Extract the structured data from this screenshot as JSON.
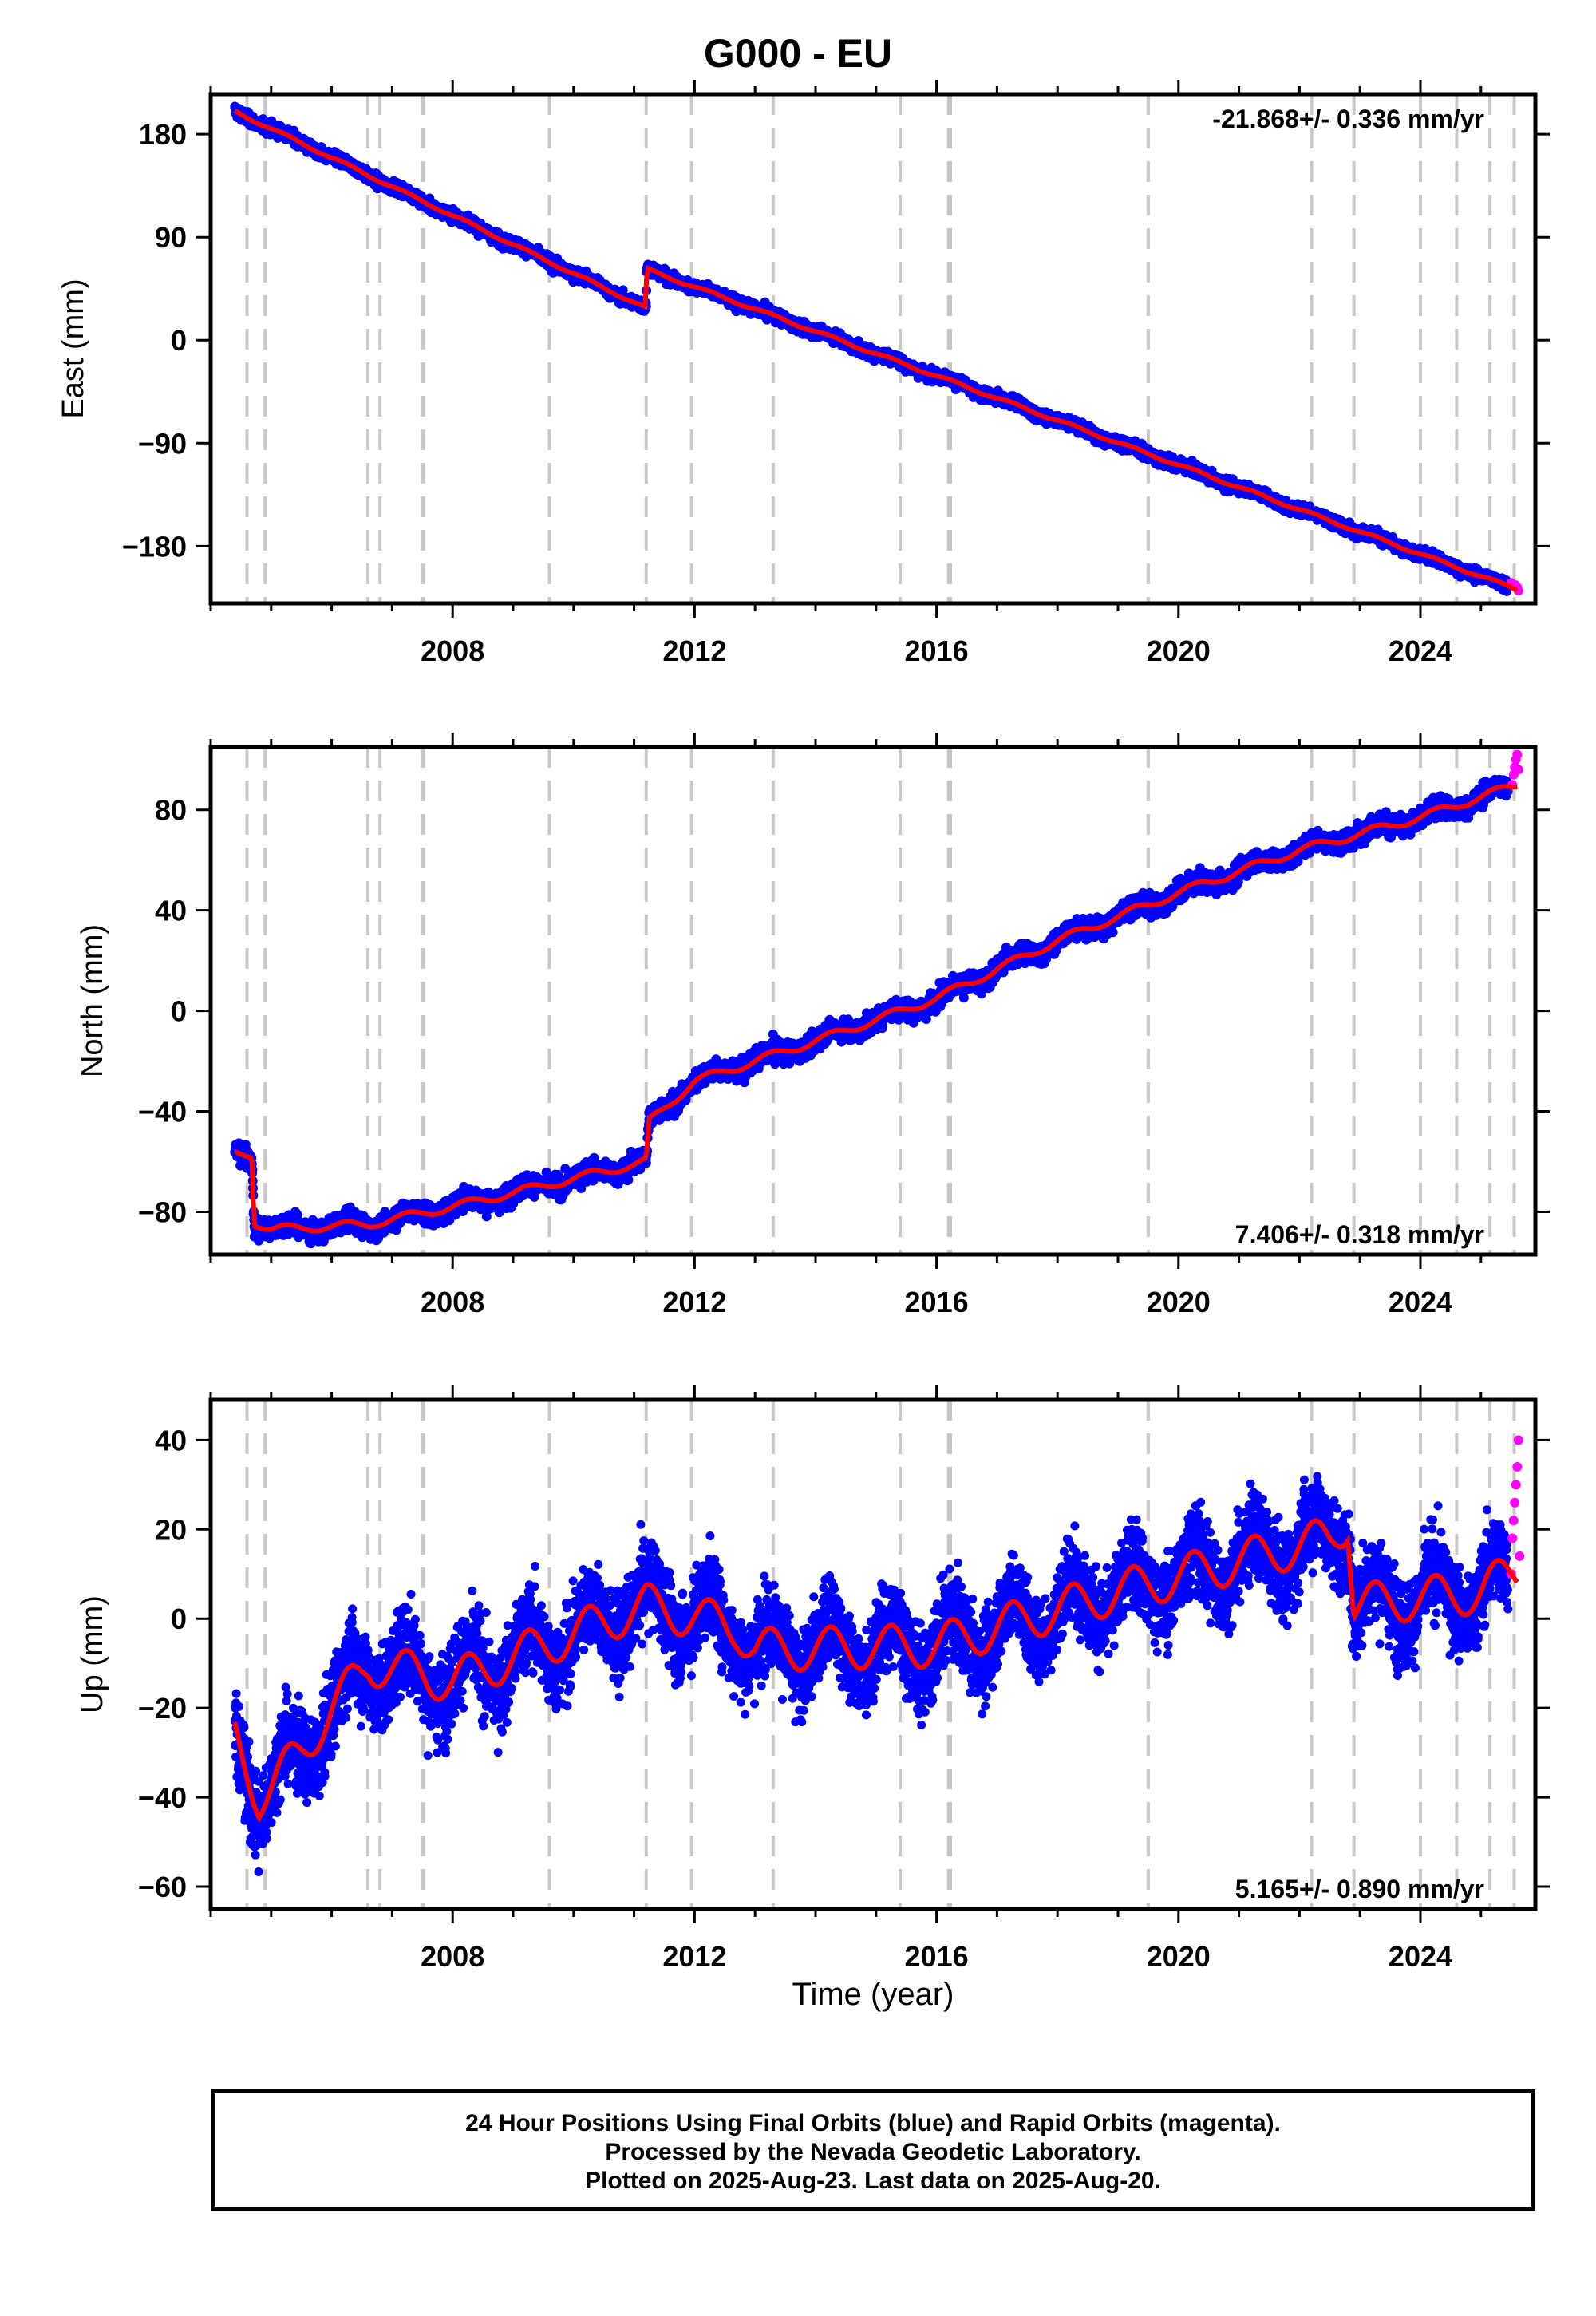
{
  "title": "G000 - EU",
  "xlabel": "Time (year)",
  "footer": {
    "line1": "24 Hour Positions Using Final Orbits (blue) and Rapid Orbits (magenta).",
    "line2": "Processed by the Nevada Geodetic Laboratory.",
    "line3": "Plotted on 2025-Aug-23. Last data on 2025-Aug-20."
  },
  "colors": {
    "final": "#0000ff",
    "rapid": "#ff00ff",
    "model": "#ff0000",
    "events": "#c8c8c8"
  },
  "chart_data": [
    {
      "type": "scatter",
      "ylabel": "East (mm)",
      "rate_label": "-21.868+/- 0.336 mm/yr",
      "rate_position": "top-right",
      "xlim": [
        2004.0,
        2025.9
      ],
      "ylim": [
        -230,
        215
      ],
      "xticks": [
        2008,
        2012,
        2016,
        2020,
        2024
      ],
      "yticks": [
        180,
        90,
        0,
        -90,
        -180
      ],
      "ytick_labels": [
        "180",
        "90",
        "0",
        "−90",
        "−180"
      ],
      "event_lines": [
        2004.6,
        2004.9,
        2006.6,
        2006.8,
        2007.5,
        2007.52,
        2009.6,
        2011.2,
        2011.95,
        2013.3,
        2015.4,
        2016.2,
        2016.23,
        2019.5,
        2022.2,
        2022.9,
        2024.0,
        2024.6,
        2025.15,
        2025.55
      ],
      "model_trend": [
        [
          2004.4,
          200
        ],
        [
          2011.2,
          28
        ],
        [
          2011.21,
          62
        ],
        [
          2025.6,
          -218
        ]
      ],
      "rapid_points": [
        [
          2025.5,
          -212
        ],
        [
          2025.52,
          -214
        ],
        [
          2025.55,
          -215
        ],
        [
          2025.57,
          -214
        ],
        [
          2025.6,
          -216
        ],
        [
          2025.62,
          -219
        ]
      ]
    },
    {
      "type": "scatter",
      "ylabel": "North (mm)",
      "rate_label": "7.406+/- 0.318 mm/yr",
      "rate_position": "bottom-right",
      "xlim": [
        2004.0,
        2025.9
      ],
      "ylim": [
        -97,
        105
      ],
      "xticks": [
        2008,
        2012,
        2016,
        2020,
        2024
      ],
      "yticks": [
        80,
        40,
        0,
        -40,
        -80
      ],
      "ytick_labels": [
        "80",
        "40",
        "0",
        "−40",
        "−80"
      ],
      "event_lines": [
        2004.6,
        2004.9,
        2006.6,
        2006.8,
        2007.5,
        2007.52,
        2009.6,
        2011.2,
        2011.95,
        2013.3,
        2015.4,
        2016.2,
        2016.23,
        2019.5,
        2022.2,
        2022.9,
        2024.0,
        2024.6,
        2025.15,
        2025.55
      ],
      "model_trend": [
        [
          2004.4,
          -57
        ],
        [
          2004.68,
          -57
        ],
        [
          2004.72,
          -84
        ],
        [
          2005.0,
          -87
        ],
        [
          2006.6,
          -85
        ],
        [
          2008.0,
          -78
        ],
        [
          2011.2,
          -60
        ],
        [
          2011.25,
          -44
        ],
        [
          2012.0,
          -28
        ],
        [
          2014.0,
          -12
        ],
        [
          2016.0,
          5
        ],
        [
          2018.0,
          28
        ],
        [
          2020.0,
          47
        ],
        [
          2022.0,
          64
        ],
        [
          2024.0,
          77
        ],
        [
          2025.6,
          90
        ]
      ],
      "rapid_points": [
        [
          2025.52,
          90
        ],
        [
          2025.54,
          94
        ],
        [
          2025.56,
          97
        ],
        [
          2025.58,
          100
        ],
        [
          2025.6,
          102
        ],
        [
          2025.62,
          96
        ]
      ]
    },
    {
      "type": "scatter",
      "ylabel": "Up (mm)",
      "rate_label": "5.165+/- 0.890 mm/yr",
      "rate_position": "bottom-right",
      "xlim": [
        2004.0,
        2025.9
      ],
      "ylim": [
        -65,
        49
      ],
      "xticks": [
        2008,
        2012,
        2016,
        2020,
        2024
      ],
      "yticks": [
        40,
        20,
        0,
        -20,
        -40,
        -60
      ],
      "ytick_labels": [
        "40",
        "20",
        "0",
        "−20",
        "−40",
        "−60"
      ],
      "event_lines": [
        2004.6,
        2004.9,
        2006.6,
        2006.8,
        2007.5,
        2007.52,
        2009.6,
        2011.2,
        2011.95,
        2013.3,
        2015.4,
        2016.2,
        2016.23,
        2019.5,
        2022.2,
        2022.9,
        2024.0,
        2024.6,
        2025.15,
        2025.55
      ],
      "model_trend": [
        [
          2004.4,
          -26
        ],
        [
          2004.8,
          -40
        ],
        [
          2005.0,
          -38
        ],
        [
          2006.6,
          -10
        ],
        [
          2008.0,
          -14
        ],
        [
          2011.2,
          3
        ],
        [
          2012.7,
          -2
        ],
        [
          2013.0,
          -7
        ],
        [
          2016.0,
          -6
        ],
        [
          2019.0,
          6
        ],
        [
          2022.5,
          18
        ],
        [
          2022.8,
          22
        ],
        [
          2022.9,
          3
        ],
        [
          2025.0,
          6
        ],
        [
          2025.6,
          11
        ]
      ],
      "rapid_points": [
        [
          2025.5,
          10
        ],
        [
          2025.52,
          18
        ],
        [
          2025.54,
          22
        ],
        [
          2025.56,
          26
        ],
        [
          2025.58,
          30
        ],
        [
          2025.6,
          34
        ],
        [
          2025.62,
          40
        ],
        [
          2025.64,
          14
        ]
      ]
    }
  ]
}
